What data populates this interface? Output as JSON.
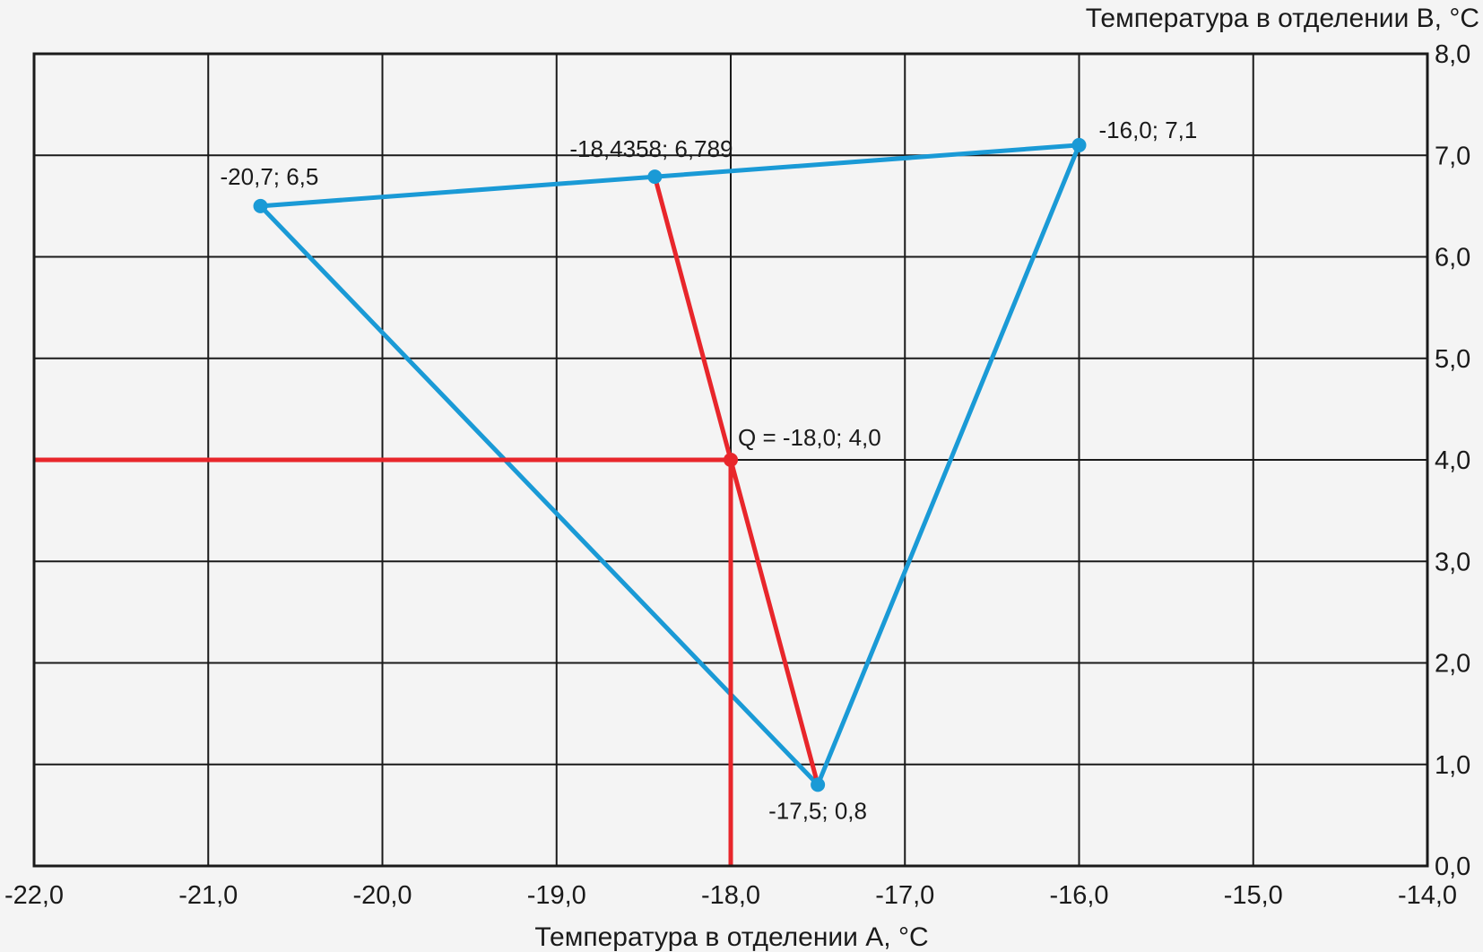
{
  "chart_data": {
    "type": "scatter",
    "title": "",
    "xlabel": "Температура в отделении А, °С",
    "ylabel": "Температура в отделении В, °С",
    "xlim": [
      -22.0,
      -14.0
    ],
    "ylim": [
      0.0,
      8.0
    ],
    "grid": true,
    "x_ticks": [
      {
        "value": -22,
        "label": "-22,0"
      },
      {
        "value": -21,
        "label": "-21,0"
      },
      {
        "value": -20,
        "label": "-20,0"
      },
      {
        "value": -19,
        "label": "-19,0"
      },
      {
        "value": -18,
        "label": "-18,0"
      },
      {
        "value": -17,
        "label": "-17,0"
      },
      {
        "value": -16,
        "label": "-16,0"
      },
      {
        "value": -15,
        "label": "-15,0"
      },
      {
        "value": -14,
        "label": "-14,0"
      }
    ],
    "y_ticks": [
      {
        "value": 0,
        "label": "0,0"
      },
      {
        "value": 1,
        "label": "1,0"
      },
      {
        "value": 2,
        "label": "2,0"
      },
      {
        "value": 3,
        "label": "3,0"
      },
      {
        "value": 4,
        "label": "4,0"
      },
      {
        "value": 5,
        "label": "5,0"
      },
      {
        "value": 6,
        "label": "6,0"
      },
      {
        "value": 7,
        "label": "7,0"
      },
      {
        "value": 8,
        "label": "8,0"
      }
    ],
    "triangle": {
      "color": "#1a9ad6",
      "points": [
        {
          "x": -20.7,
          "y": 6.5,
          "label": "-20,7; 6,5"
        },
        {
          "x": -16.0,
          "y": 7.1,
          "label": "-16,0; 7,1"
        },
        {
          "x": -17.5,
          "y": 0.8,
          "label": "-17,5; 0,8"
        }
      ]
    },
    "interpolation_point": {
      "x": -18.4358,
      "y": 6.789,
      "label": "-18,4358; 6,789",
      "color": "#1a9ad6"
    },
    "q_point": {
      "x": -18.0,
      "y": 4.0,
      "label": "Q = -18,0; 4,0",
      "color": "#e8262b"
    },
    "red_lines": {
      "color": "#e8262b",
      "segments": [
        {
          "from": [
            -18.4358,
            6.789
          ],
          "to": [
            -17.5,
            0.8
          ]
        },
        {
          "from": [
            -22.0,
            4.0
          ],
          "to": [
            -18.0,
            4.0
          ]
        },
        {
          "from": [
            -18.0,
            4.0
          ],
          "to": [
            -18.0,
            0.0
          ]
        }
      ]
    }
  }
}
